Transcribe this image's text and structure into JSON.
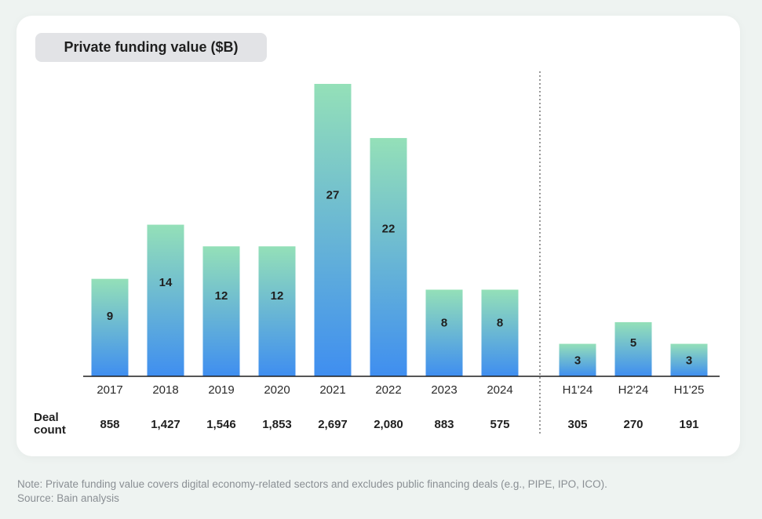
{
  "chart_data": {
    "type": "bar",
    "title": "Private funding value ($B)",
    "categories": [
      "2017",
      "2018",
      "2019",
      "2020",
      "2021",
      "2022",
      "2023",
      "2024",
      "H1'24",
      "H2'24",
      "H1'25"
    ],
    "values": [
      9,
      14,
      12,
      12,
      27,
      22,
      8,
      8,
      3,
      5,
      3
    ],
    "deal_count_label": [
      "Deal",
      "count"
    ],
    "deal_counts": [
      "858",
      "1,427",
      "1,546",
      "1,853",
      "2,697",
      "2,080",
      "883",
      "575",
      "305",
      "270",
      "191"
    ],
    "ylim": [
      0,
      27
    ],
    "colors": {
      "bar_top": "#94e0b8",
      "bar_bottom": "#3f8ef0"
    }
  },
  "footer": {
    "note": "Note: Private funding value covers digital economy-related sectors and excludes public financing deals (e.g., PIPE, IPO, ICO).",
    "source": "Source: Bain analysis"
  }
}
